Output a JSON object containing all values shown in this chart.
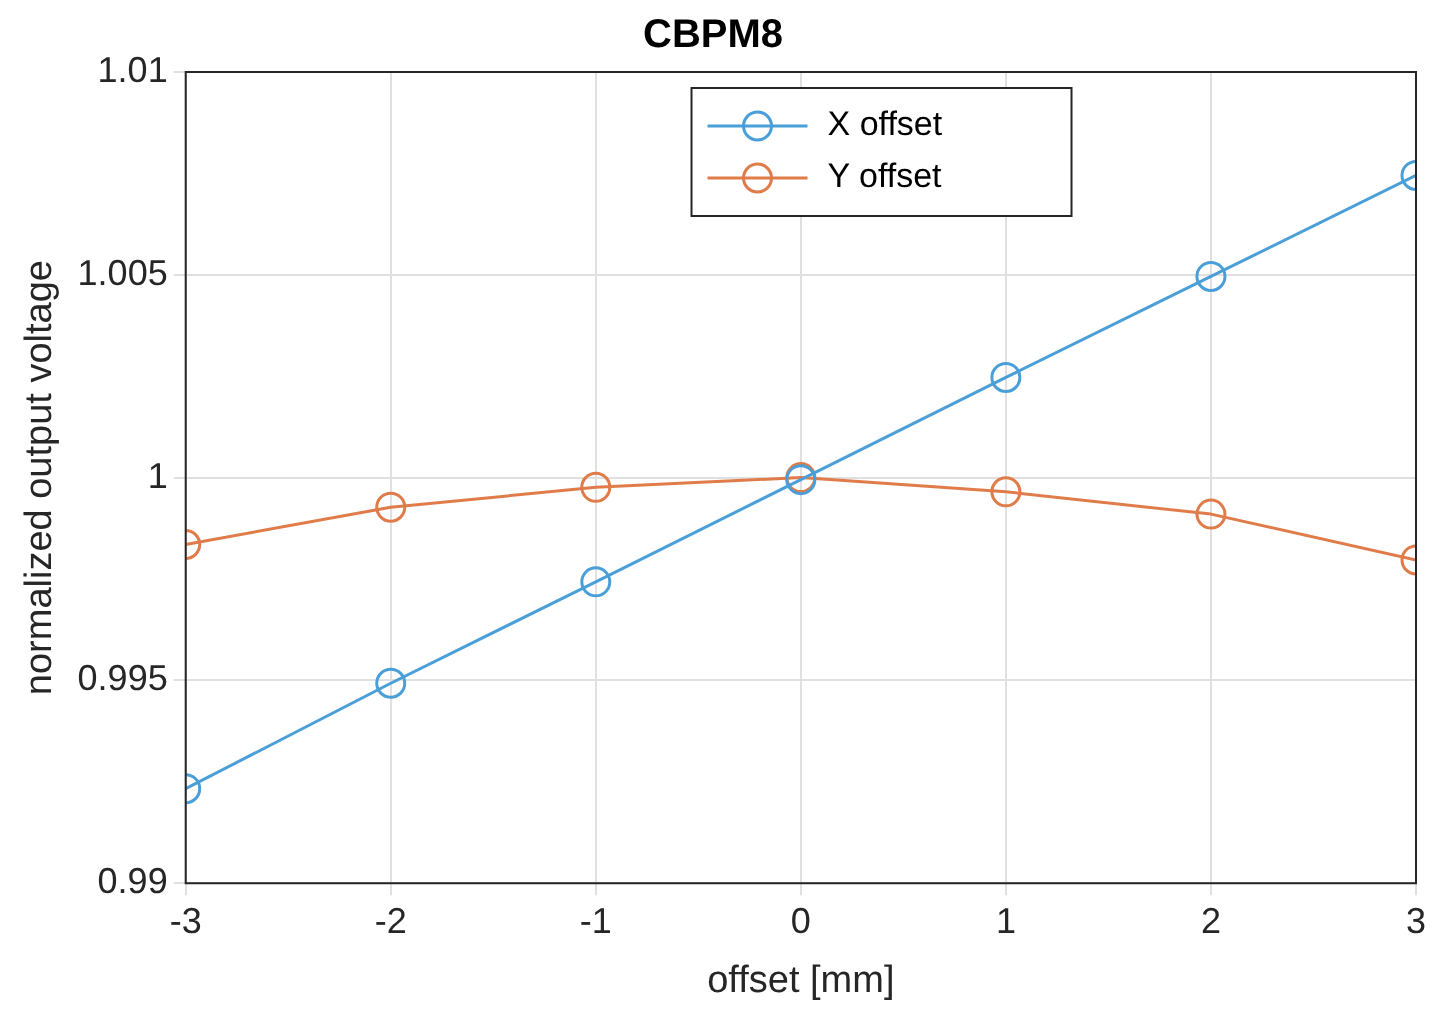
{
  "chart_data": {
    "type": "line",
    "title": "CBPM8",
    "xlabel": "offset [mm]",
    "ylabel": "normalized output voltage",
    "x": [
      -3,
      -2,
      -1,
      0,
      1,
      2,
      3
    ],
    "series": [
      {
        "name": "X offset",
        "color": "#4a9fd8",
        "values": [
          0.99233,
          0.99493,
          0.99743,
          0.99995,
          1.00247,
          1.00496,
          1.00745
        ]
      },
      {
        "name": "Y offset",
        "color": "#e07b4a",
        "values": [
          0.99835,
          0.99927,
          0.99976,
          1.0,
          0.99965,
          0.9991,
          0.99797
        ]
      }
    ],
    "xlim": [
      -3,
      3
    ],
    "xticks": [
      -3,
      -2,
      -1,
      0,
      1,
      2,
      3
    ],
    "ylim": [
      0.99,
      1.01
    ],
    "yticks": [
      0.99,
      0.995,
      1,
      1.005,
      1.01
    ],
    "grid": true,
    "legend": "top right",
    "marker": "circle",
    "line_style": "solid"
  }
}
